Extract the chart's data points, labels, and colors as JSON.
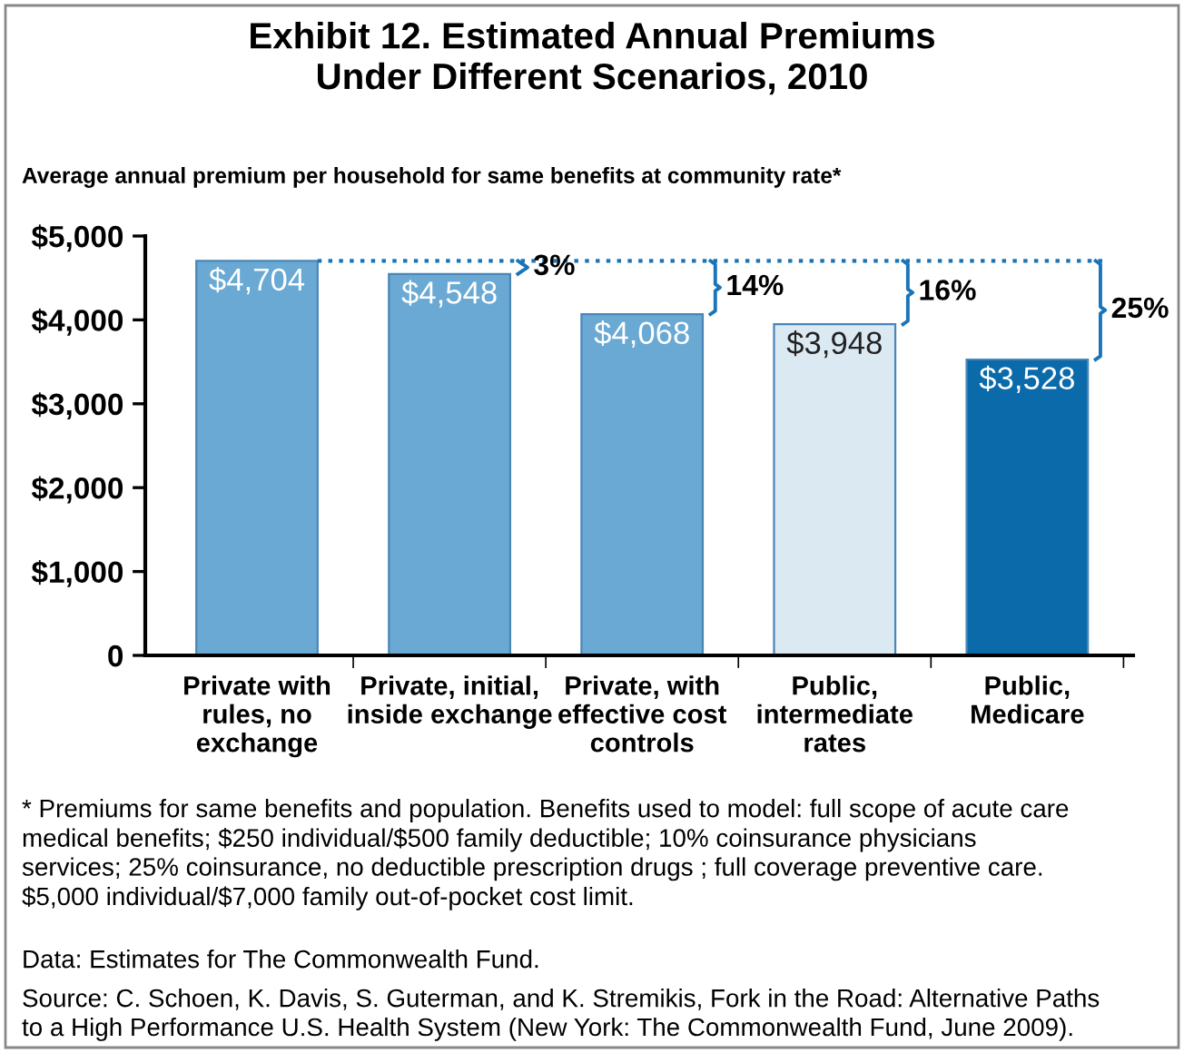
{
  "chart_data": {
    "type": "bar",
    "title": "Exhibit 12. Estimated Annual Premiums\nUnder Different Scenarios, 2010",
    "subtitle": "Average annual premium per household for same benefits at community rate*",
    "categories": [
      "Private with\nrules, no\nexchange",
      "Private, initial,\ninside exchange",
      "Private, with\neffective cost\ncontrols",
      "Public,\nintermediate\nrates",
      "Public,\nMedicare"
    ],
    "values": [
      4704,
      4548,
      4068,
      3948,
      3528
    ],
    "colors": [
      "#6aa9d3",
      "#6aa9d3",
      "#6aa9d3",
      "#dbe9f3",
      "#0a6aaa"
    ],
    "value_labels": [
      "$4,704",
      "$4,548",
      "$4,068",
      "$3,948",
      "$3,528"
    ],
    "ylim": [
      0,
      5000
    ],
    "yticks": [
      {
        "value": 0,
        "label": "0"
      },
      {
        "value": 1000,
        "label": "$1,000"
      },
      {
        "value": 2000,
        "label": "$2,000"
      },
      {
        "value": 3000,
        "label": "$3,000"
      },
      {
        "value": 4000,
        "label": "$4,000"
      },
      {
        "value": 5000,
        "label": "$5,000"
      }
    ],
    "grid": false,
    "ref_lines": [
      {
        "axis": "y",
        "value": 4704,
        "color": "#1a75b8",
        "line_style": "dotted"
      }
    ],
    "annotations": [
      "3%",
      "14%",
      "16%",
      "25%",
      "* Premiums for same benefits and population. Benefits used to model: full scope of acute care\nmedical benefits; $250 individual/$500 family deductible; 10% coinsurance physicians\nservices; 25% coinsurance, no deductible prescription drugs ; full coverage preventive care.\n$5,000 individual/$7,000 family out-of-pocket cost limit.",
      "Data: Estimates for The Commonwealth Fund.",
      "Source: C. Schoen, K. Davis, S. Guterman, and K. Stremikis, Fork in the Road: Alternative Paths\nto a High Performance U.S. Health System (New York: The Commonwealth Fund, June 2009)."
    ]
  }
}
